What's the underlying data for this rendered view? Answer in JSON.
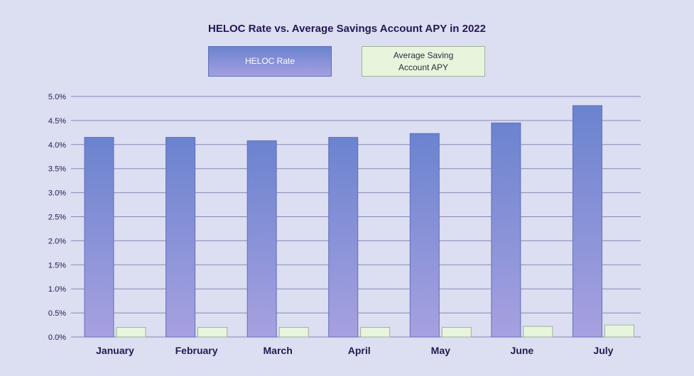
{
  "chart_data": {
    "type": "bar",
    "title": "HELOC Rate vs. Average Savings Account APY in 2022",
    "categories": [
      "January",
      "February",
      "March",
      "April",
      "May",
      "June",
      "July"
    ],
    "series": [
      {
        "name": "HELOC Rate",
        "values": [
          4.15,
          4.15,
          4.08,
          4.15,
          4.23,
          4.45,
          4.81
        ],
        "color": "#7283d3"
      },
      {
        "name": "Average Saving Account APY",
        "values": [
          0.2,
          0.2,
          0.2,
          0.2,
          0.2,
          0.22,
          0.25
        ],
        "color": "#e7f5dc"
      }
    ],
    "legend": [
      "HELOC Rate",
      "Average Saving Account APY"
    ],
    "ylim": [
      0,
      5
    ],
    "yticks": [
      "0.0%",
      "0.5%",
      "1.0%",
      "1.5%",
      "2.0%",
      "2.5%",
      "3.0%",
      "3.5%",
      "4.0%",
      "4.5%",
      "5.0%"
    ],
    "xlabel": "",
    "ylabel": "",
    "grid": true,
    "legend_placement": "top-center"
  }
}
